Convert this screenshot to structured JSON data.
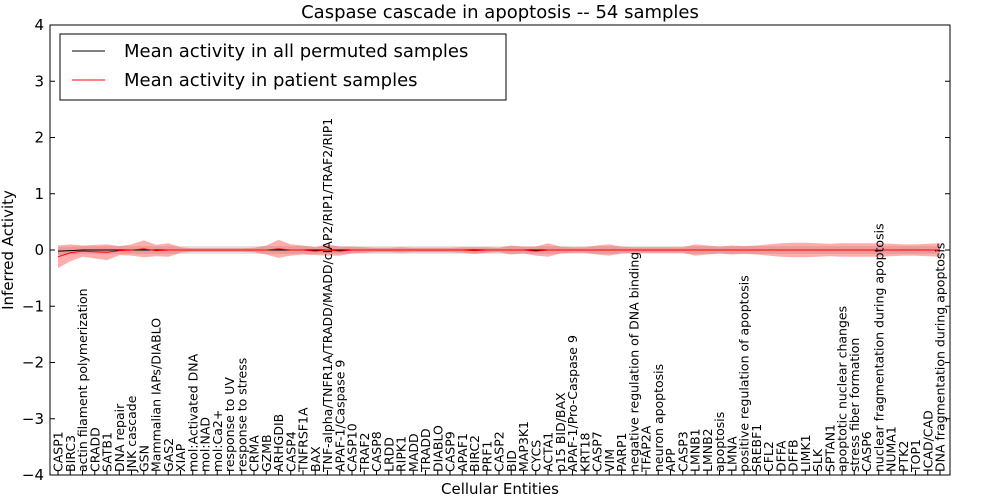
{
  "chart_data": {
    "type": "line",
    "title": "Caspase cascade in apoptosis -- 54 samples",
    "xlabel": "Cellular Entities",
    "ylabel": "Inferred Activity",
    "ylim": [
      -4,
      4
    ],
    "yticks": [
      "4",
      "3",
      "2",
      "1",
      "0",
      "−1",
      "−2",
      "−3",
      "−4"
    ],
    "legend_position": "top-left",
    "legend": [
      {
        "label": "Mean activity in all permuted samples",
        "color": "#000000"
      },
      {
        "label": "Mean activity in patient samples",
        "color": "#ff0000"
      }
    ],
    "categories": [
      "CASP1",
      "BIRC3",
      "actin filament polymerization",
      "CRADD",
      "SATB1",
      "DNA repair",
      "JNK cascade",
      "GSN",
      "Mammalian IAPs/DIABLO",
      "GAS2",
      "XIAP",
      "mol:Activated DNA",
      "mol:NAD",
      "mol:Ca2+",
      "response to UV",
      "response to stress",
      "CRMA",
      "GZMB",
      "ARHGDIB",
      "CASP4",
      "TNFRSF1A",
      "BAX",
      "TNF-alpha/TNFR1A/TRADD/MADD/cIAP2/RIP1/TRAF2/RIP1",
      "APAF-1/Caspase 9",
      "CASP10",
      "TRAF2",
      "CASP8",
      "LRDD",
      "RIPK1",
      "MADD",
      "TRADD",
      "DIABLO",
      "CASP9",
      "APAF1",
      "BIRC2",
      "PRF1",
      "CASP2",
      "BID",
      "MAP3K1",
      "CYCS",
      "ACTA1",
      "p15 BID/BAX",
      "APAF-1/Pro-Caspase 9",
      "KRT18",
      "CASP7",
      "VIM",
      "PARP1",
      "negative regulation of DNA binding",
      "TFAP2A",
      "neuron apoptosis",
      "APP",
      "CASP3",
      "LMNB1",
      "LMNB2",
      "apoptosis",
      "LMNA",
      "positive regulation of apoptosis",
      "SREBF1",
      "CFL2",
      "DFFA",
      "DFFB",
      "LIMK1",
      "SLK",
      "SPTAN1",
      "apoptotic nuclear changes",
      "stress fiber formation",
      "CASP6",
      "nuclear fragmentation during apoptosis",
      "NUMA1",
      "PTK2",
      "TOP1",
      "ICAD/CAD",
      "DNA fragmentation during apoptosis"
    ],
    "series": [
      {
        "name": "Mean activity in all permuted samples",
        "color": "#000000",
        "values": [
          -0.02,
          -0.01,
          0.0,
          0.0,
          0.0,
          0.0,
          0.0,
          0.0,
          0.0,
          0.0,
          0.0,
          0.0,
          0.0,
          0.0,
          0.0,
          0.0,
          0.0,
          0.0,
          0.0,
          0.0,
          0.0,
          0.0,
          0.0,
          0.0,
          0.0,
          0.0,
          0.0,
          0.0,
          0.0,
          0.0,
          0.0,
          0.0,
          0.0,
          0.0,
          0.0,
          0.0,
          0.0,
          0.0,
          0.0,
          0.0,
          0.0,
          0.0,
          0.0,
          0.0,
          0.0,
          0.0,
          0.0,
          0.0,
          0.0,
          0.0,
          0.0,
          0.0,
          0.0,
          0.0,
          0.0,
          0.0,
          0.0,
          0.0,
          0.0,
          0.0,
          0.0,
          0.0,
          0.0,
          0.0,
          0.0,
          0.0,
          0.0,
          0.0,
          0.0,
          0.0,
          0.0,
          0.0,
          0.0
        ],
        "band": 0.07
      },
      {
        "name": "Mean activity in patient samples",
        "color": "#ff0000",
        "values": [
          -0.12,
          -0.05,
          -0.02,
          -0.03,
          -0.04,
          -0.01,
          0.0,
          0.02,
          -0.01,
          0.0,
          0.0,
          0.0,
          0.0,
          0.0,
          0.0,
          0.0,
          0.0,
          0.0,
          0.02,
          0.0,
          0.0,
          -0.02,
          0.0,
          -0.02,
          0.0,
          0.0,
          0.0,
          0.0,
          0.0,
          0.0,
          0.0,
          0.0,
          0.0,
          0.0,
          -0.01,
          0.0,
          0.0,
          0.0,
          0.0,
          -0.02,
          0.0,
          0.0,
          0.0,
          0.0,
          0.0,
          0.0,
          0.0,
          0.0,
          0.0,
          0.0,
          0.0,
          0.0,
          0.0,
          0.0,
          0.0,
          0.0,
          0.0,
          0.0,
          0.0,
          0.0,
          0.0,
          0.0,
          0.0,
          0.0,
          0.0,
          0.0,
          0.0,
          0.0,
          0.0,
          0.0,
          0.0,
          0.0,
          0.0
        ],
        "band": [
          0.2,
          0.15,
          0.1,
          0.12,
          0.14,
          0.08,
          0.1,
          0.15,
          0.1,
          0.12,
          0.05,
          0.03,
          0.03,
          0.03,
          0.03,
          0.03,
          0.04,
          0.08,
          0.16,
          0.1,
          0.08,
          0.07,
          0.1,
          0.08,
          0.06,
          0.05,
          0.04,
          0.04,
          0.05,
          0.04,
          0.04,
          0.04,
          0.04,
          0.05,
          0.06,
          0.05,
          0.04,
          0.08,
          0.06,
          0.08,
          0.12,
          0.06,
          0.05,
          0.05,
          0.08,
          0.1,
          0.06,
          0.05,
          0.05,
          0.05,
          0.05,
          0.05,
          0.1,
          0.08,
          0.06,
          0.08,
          0.07,
          0.08,
          0.1,
          0.12,
          0.13,
          0.13,
          0.12,
          0.11,
          0.12,
          0.12,
          0.12,
          0.12,
          0.11,
          0.1,
          0.1,
          0.11,
          0.12
        ]
      }
    ]
  }
}
